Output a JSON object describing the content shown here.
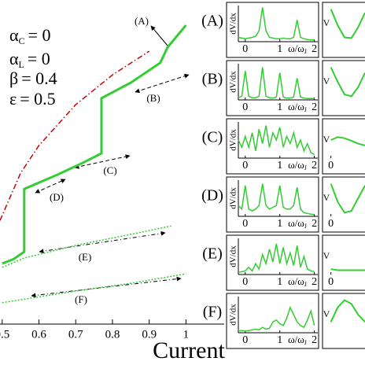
{
  "chart_data": [
    {
      "type": "line",
      "xlabel": "Current",
      "xlim": [
        0.494,
        1.104
      ],
      "ylim": [
        0,
        1
      ],
      "xticks": [
        0.5,
        0.6,
        0.7,
        0.8,
        0.9,
        1
      ],
      "params": [
        {
          "symbol": "α",
          "sub": "C",
          "text": "= 0"
        },
        {
          "symbol": "α",
          "sub": "L",
          "text": "= 0"
        },
        {
          "symbol": "β",
          "text": "= 0.4"
        },
        {
          "symbol": "ε",
          "text": "= 0.5"
        }
      ],
      "annotations": [
        "(A)",
        "(B)",
        "(C)",
        "(D)",
        "(E)",
        "(F)"
      ],
      "series": [
        {
          "color": "#cc0000",
          "linestyle": "dashdot",
          "x": [
            0.494,
            0.55,
            0.6,
            0.7,
            0.8,
            0.9
          ],
          "values": [
            0.32,
            0.466,
            0.551,
            0.677,
            0.769,
            0.842
          ]
        },
        {
          "color": "#33cc33",
          "linestyle": "solid",
          "x": [
            0.5,
            0.53,
            0.56,
            0.56,
            0.65,
            0.72,
            0.77,
            0.77,
            0.85,
            0.93,
            0.95,
            1.0
          ],
          "values": [
            0.187,
            0.2,
            0.223,
            0.417,
            0.461,
            0.498,
            0.527,
            0.697,
            0.745,
            0.806,
            0.854,
            0.922
          ]
        },
        {
          "color": "#33cc33",
          "linestyle": "dotted",
          "x": [
            0.5,
            0.56,
            0.7,
            0.85,
            0.96
          ],
          "values": [
            0.175,
            0.204,
            0.243,
            0.277,
            0.303
          ]
        },
        {
          "color": "#33cc33",
          "linestyle": "dotted",
          "x": [
            0.5,
            0.7,
            0.85,
            1.0
          ],
          "values": [
            0.066,
            0.102,
            0.126,
            0.155
          ]
        }
      ]
    },
    {
      "type": "line",
      "label": "(A)",
      "ylabel": "dV/dx",
      "xlabel": "ω/ω",
      "xlabel_sub": "J",
      "xlim": [
        -0.2,
        2.1
      ],
      "ylim": [
        0,
        1
      ],
      "xticks": [
        0,
        1,
        2
      ],
      "color": "#33cc33",
      "x": [
        -0.2,
        -0.1,
        0,
        0.1,
        0.2,
        0.3,
        0.4,
        0.5,
        0.6,
        0.7,
        0.8,
        0.9,
        1,
        1.1,
        1.2,
        1.3,
        1.4,
        1.5,
        1.6,
        1.7,
        1.8,
        1.9,
        2
      ],
      "values": [
        0.12,
        0.1,
        0.08,
        0.1,
        0.12,
        0.15,
        0.3,
        0.95,
        0.3,
        0.12,
        0.1,
        0.08,
        0.08,
        0.1,
        0.08,
        0.08,
        0.12,
        0.6,
        0.12,
        0.08,
        0.06,
        0.05,
        0.05
      ]
    },
    {
      "type": "line",
      "label": "(B)",
      "ylabel": "dV/dx",
      "xlabel": "ω/ω",
      "xlabel_sub": "J",
      "xlim": [
        -0.2,
        2.1
      ],
      "ylim": [
        0,
        1
      ],
      "xticks": [
        0,
        1,
        2
      ],
      "color": "#33cc33",
      "x": [
        -0.2,
        -0.1,
        0,
        0.1,
        0.2,
        0.3,
        0.4,
        0.5,
        0.6,
        0.7,
        0.8,
        0.9,
        1,
        1.1,
        1.2,
        1.3,
        1.4,
        1.5,
        1.6,
        1.7,
        1.8,
        1.9,
        2
      ],
      "values": [
        0.06,
        0.1,
        0.8,
        0.1,
        0.06,
        0.06,
        0.1,
        0.9,
        0.1,
        0.06,
        0.05,
        0.08,
        0.75,
        0.08,
        0.05,
        0.05,
        0.08,
        0.6,
        0.08,
        0.05,
        0.04,
        0.04,
        0.04
      ]
    },
    {
      "type": "line",
      "label": "(C)",
      "ylabel": "dV/dx",
      "xlabel": "ω/ω",
      "xlabel_sub": "J",
      "xlim": [
        -0.2,
        2.1
      ],
      "ylim": [
        0,
        1
      ],
      "xticks": [
        0,
        1,
        2
      ],
      "color": "#33cc33",
      "x": [
        -0.2,
        -0.1,
        0,
        0.1,
        0.2,
        0.3,
        0.4,
        0.5,
        0.6,
        0.7,
        0.8,
        0.9,
        1,
        1.1,
        1.2,
        1.3,
        1.4,
        1.5,
        1.6,
        1.7,
        1.8,
        1.9,
        2
      ],
      "values": [
        0.5,
        0.3,
        0.6,
        0.3,
        0.7,
        0.2,
        0.8,
        0.4,
        0.9,
        0.3,
        0.7,
        0.5,
        0.85,
        0.3,
        0.6,
        0.4,
        0.7,
        0.3,
        0.5,
        0.2,
        0.4,
        0.15,
        0.1
      ]
    },
    {
      "type": "line",
      "label": "(D)",
      "ylabel": "dV/dx",
      "xlabel": "ω/ω",
      "xlabel_sub": "J",
      "xlim": [
        -0.2,
        2.1
      ],
      "ylim": [
        0,
        1
      ],
      "xticks": [
        0,
        1,
        2
      ],
      "color": "#33cc33",
      "x": [
        -0.2,
        -0.1,
        0,
        0.1,
        0.2,
        0.3,
        0.4,
        0.5,
        0.6,
        0.7,
        0.8,
        0.9,
        1,
        1.1,
        1.2,
        1.3,
        1.4,
        1.5,
        1.6,
        1.7,
        1.8,
        1.9,
        2
      ],
      "values": [
        0.3,
        0.2,
        0.85,
        0.2,
        0.15,
        0.2,
        0.3,
        0.9,
        0.3,
        0.2,
        0.25,
        0.3,
        0.85,
        0.25,
        0.2,
        0.2,
        0.3,
        0.8,
        0.2,
        0.1,
        0.08,
        0.06,
        0.05
      ]
    },
    {
      "type": "line",
      "label": "(E)",
      "ylabel": "dV/dx",
      "xlabel": "ω/ω",
      "xlabel_sub": "J",
      "xlim": [
        -0.2,
        2.1
      ],
      "ylim": [
        0,
        1
      ],
      "xticks": [
        0,
        1,
        2
      ],
      "color": "#33cc33",
      "x": [
        -0.2,
        -0.1,
        0,
        0.1,
        0.2,
        0.3,
        0.4,
        0.5,
        0.6,
        0.7,
        0.8,
        0.9,
        1,
        1.1,
        1.2,
        1.3,
        1.4,
        1.5,
        1.6,
        1.7,
        1.8,
        1.9,
        2
      ],
      "values": [
        0.06,
        0.08,
        0.1,
        0.2,
        0.1,
        0.3,
        0.15,
        0.55,
        0.3,
        0.7,
        0.35,
        0.85,
        0.3,
        0.75,
        0.3,
        0.6,
        0.25,
        0.8,
        0.2,
        0.5,
        0.15,
        0.1,
        0.08
      ]
    },
    {
      "type": "line",
      "label": "(F)",
      "ylabel": "dV/dx",
      "xlabel": "ω/ω",
      "xlabel_sub": "J",
      "xlim": [
        -0.2,
        2.1
      ],
      "ylim": [
        0,
        1
      ],
      "xticks": [
        0,
        1,
        2
      ],
      "color": "#33cc33",
      "x": [
        -0.2,
        -0.1,
        0,
        0.1,
        0.2,
        0.3,
        0.4,
        0.5,
        0.6,
        0.7,
        0.8,
        0.9,
        1,
        1.1,
        1.2,
        1.3,
        1.4,
        1.5,
        1.6,
        1.7,
        1.8,
        1.9,
        2
      ],
      "values": [
        0.05,
        0.06,
        0.05,
        0.06,
        0.08,
        0.1,
        0.08,
        0.15,
        0.1,
        0.12,
        0.3,
        0.35,
        0.25,
        0.2,
        0.4,
        0.7,
        0.5,
        0.3,
        0.2,
        0.15,
        0.35,
        0.6,
        0.2
      ]
    },
    {
      "type": "line",
      "ylabel": "V",
      "xlim": [
        -1,
        5
      ],
      "ylim": [
        0,
        1
      ],
      "xticks": [],
      "color": "#33cc33",
      "x": [
        0,
        1,
        2,
        3,
        4,
        5
      ],
      "values": [
        0.9,
        0.45,
        0.12,
        0.1,
        0.4,
        0.8
      ]
    },
    {
      "type": "line",
      "ylabel": "V",
      "xlim": [
        -1,
        5
      ],
      "ylim": [
        0,
        1
      ],
      "xticks": [],
      "color": "#33cc33",
      "x": [
        0,
        1,
        2,
        3,
        4,
        5
      ],
      "values": [
        0.9,
        0.5,
        0.15,
        0.1,
        0.35,
        0.75
      ]
    },
    {
      "type": "line",
      "ylabel": "V",
      "xlim": [
        -1,
        5
      ],
      "ylim": [
        0,
        1
      ],
      "xticks": [
        0
      ],
      "color": "#33cc33",
      "x": [
        0,
        1,
        2,
        3,
        4,
        5
      ],
      "values": [
        0.5,
        0.58,
        0.55,
        0.48,
        0.4,
        0.35
      ]
    },
    {
      "type": "line",
      "ylabel": "V",
      "xlim": [
        -1,
        5
      ],
      "ylim": [
        0,
        1
      ],
      "xticks": [
        0
      ],
      "color": "#33cc33",
      "x": [
        0,
        1,
        2,
        3,
        4,
        5
      ],
      "values": [
        0.9,
        0.4,
        0.1,
        0.15,
        0.5,
        0.85
      ]
    },
    {
      "type": "line",
      "ylabel": "V",
      "xlim": [
        -1,
        5
      ],
      "ylim": [
        0,
        1
      ],
      "xticks": [
        0
      ],
      "color": "#33cc33",
      "x": [
        0,
        1,
        2,
        3,
        4,
        5
      ],
      "values": [
        0.15,
        0.12,
        0.12,
        0.12,
        0.12,
        0.12
      ]
    },
    {
      "type": "line",
      "ylabel": "V",
      "xlim": [
        -1,
        5
      ],
      "ylim": [
        0,
        1
      ],
      "xticks": [],
      "color": "#33cc33",
      "x": [
        0,
        1,
        2,
        3,
        4,
        5
      ],
      "values": [
        0.3,
        0.7,
        0.9,
        0.8,
        0.5,
        0.3
      ]
    }
  ]
}
